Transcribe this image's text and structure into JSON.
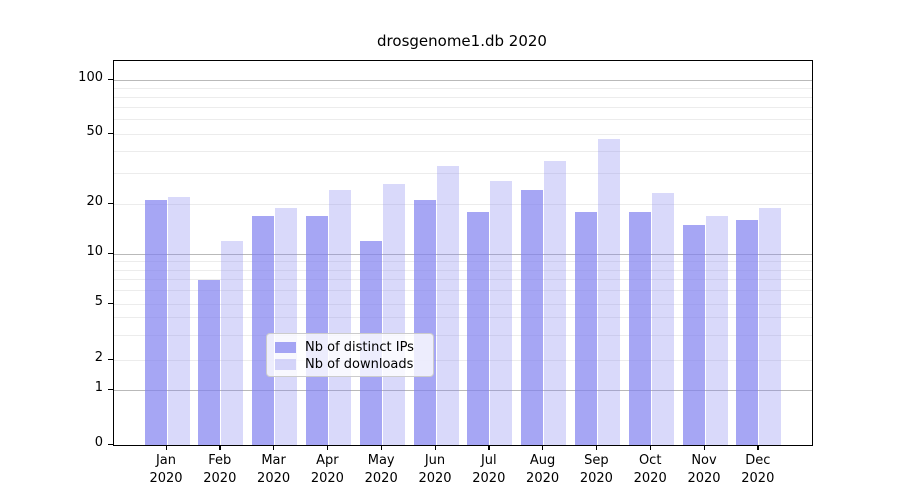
{
  "title": "drosgenome1.db 2020",
  "chart_data": {
    "type": "bar",
    "title": "drosgenome1.db 2020",
    "categories": [
      "Jan 2020",
      "Feb 2020",
      "Mar 2020",
      "Apr 2020",
      "May 2020",
      "Jun 2020",
      "Jul 2020",
      "Aug 2020",
      "Sep 2020",
      "Oct 2020",
      "Nov 2020",
      "Dec 2020"
    ],
    "series": [
      {
        "name": "Nb of distinct IPs",
        "color": "rgba(128,128,240,0.70)",
        "values": [
          21,
          7,
          17,
          17,
          12,
          21,
          18,
          24,
          18,
          18,
          15,
          16
        ]
      },
      {
        "name": "Nb of downloads",
        "color": "rgba(128,128,240,0.30)",
        "values": [
          22,
          12,
          19,
          24,
          26,
          33,
          27,
          35,
          47,
          23,
          17,
          19
        ]
      }
    ],
    "xlabel": "",
    "ylabel": "",
    "yscale": "symlog-like",
    "yticks": [
      0,
      1,
      2,
      5,
      10,
      20,
      50,
      100
    ],
    "minor_grid_values": [
      2,
      3,
      4,
      5,
      6,
      7,
      8,
      9,
      20,
      30,
      40,
      50,
      60,
      70,
      80,
      90
    ],
    "major_grid_values": [
      1,
      10,
      100
    ],
    "ylim": [
      0,
      115
    ],
    "grid": true,
    "legend_position": "bottom-center"
  },
  "legend": {
    "items": [
      {
        "label": "Nb of distinct IPs"
      },
      {
        "label": "Nb of downloads"
      }
    ]
  },
  "colors": {
    "bar_dark": "rgba(128,128,240,0.70)",
    "bar_light": "rgba(128,128,240,0.30)",
    "grid_minor": "#ececec",
    "grid_major": "#b9b9b9",
    "axis": "#000000",
    "legend_border": "#cccccc"
  }
}
